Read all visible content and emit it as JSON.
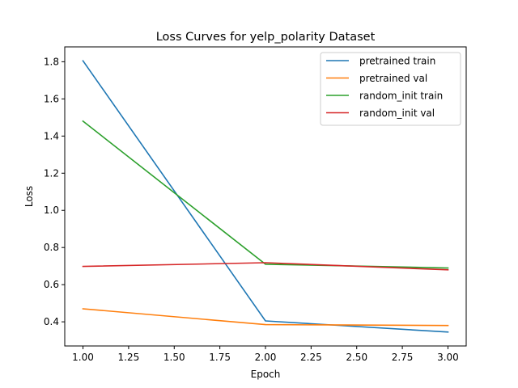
{
  "chart_data": {
    "type": "line",
    "title": "Loss Curves for yelp_polarity Dataset",
    "xlabel": "Epoch",
    "ylabel": "Loss",
    "xlim": [
      0.9,
      3.1
    ],
    "ylim": [
      0.27,
      1.88
    ],
    "xticks": [
      1.0,
      1.25,
      1.5,
      1.75,
      2.0,
      2.25,
      2.5,
      2.75,
      3.0
    ],
    "xtick_labels": [
      "1.00",
      "1.25",
      "1.50",
      "1.75",
      "2.00",
      "2.25",
      "2.50",
      "2.75",
      "3.00"
    ],
    "yticks": [
      0.4,
      0.6,
      0.8,
      1.0,
      1.2,
      1.4,
      1.6,
      1.8
    ],
    "ytick_labels": [
      "0.4",
      "0.6",
      "0.8",
      "1.0",
      "1.2",
      "1.4",
      "1.6",
      "1.8"
    ],
    "grid": false,
    "legend_position": "top-right",
    "x": [
      1.0,
      2.0,
      3.0
    ],
    "series": [
      {
        "name": "pretrained train",
        "color": "#1f77b4",
        "values": [
          1.805,
          0.405,
          0.345
        ]
      },
      {
        "name": "pretrained val",
        "color": "#ff7f0e",
        "values": [
          0.47,
          0.385,
          0.38
        ]
      },
      {
        "name": "random_init train",
        "color": "#2ca02c",
        "values": [
          1.48,
          0.71,
          0.69
        ]
      },
      {
        "name": "random_init val",
        "color": "#d62728",
        "values": [
          0.698,
          0.718,
          0.68
        ]
      }
    ]
  }
}
